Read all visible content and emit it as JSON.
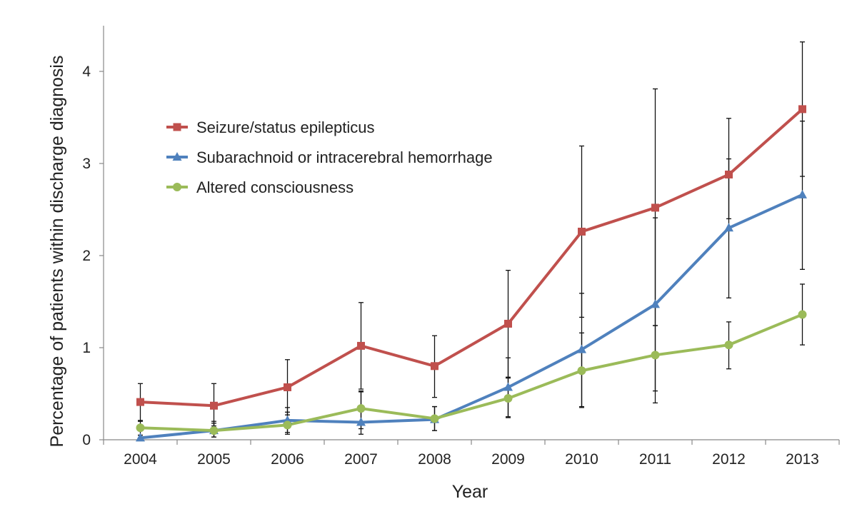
{
  "chart_data": {
    "type": "line",
    "title": "",
    "xlabel": "Year",
    "ylabel": "Percentage of patients within discharge diagnosis",
    "categories": [
      "2004",
      "2005",
      "2006",
      "2007",
      "2008",
      "2009",
      "2010",
      "2011",
      "2012",
      "2013"
    ],
    "ylim": [
      0,
      4.5
    ],
    "yticks": [
      "0",
      "1",
      "2",
      "3",
      "4"
    ],
    "grid": false,
    "legend_position": "top-left",
    "series": [
      {
        "name": "Seizure/status epilepticus",
        "color": "#c0504d",
        "marker": "square",
        "values": [
          0.41,
          0.37,
          0.57,
          1.02,
          0.8,
          1.26,
          2.26,
          2.52,
          2.88,
          3.59
        ],
        "error_low": [
          0.2,
          0.15,
          0.27,
          0.55,
          0.46,
          0.68,
          1.33,
          1.24,
          2.4,
          2.86
        ],
        "error_high": [
          0.61,
          0.61,
          0.87,
          1.49,
          1.13,
          1.84,
          3.19,
          3.81,
          3.49,
          4.32
        ]
      },
      {
        "name": "Subarachnoid or intracerebral hemorrhage",
        "color": "#4f81bd",
        "marker": "triangle",
        "values": [
          0.02,
          0.1,
          0.21,
          0.19,
          0.22,
          0.57,
          0.98,
          1.47,
          2.3,
          2.66
        ],
        "error_low": [
          0.0,
          0.03,
          0.08,
          0.06,
          0.1,
          0.25,
          0.35,
          0.53,
          1.54,
          1.85
        ],
        "error_high": [
          0.05,
          0.2,
          0.35,
          0.52,
          0.36,
          0.89,
          1.59,
          2.41,
          3.05,
          3.46
        ]
      },
      {
        "name": "Altered consciousness",
        "color": "#9bbb59",
        "marker": "circle",
        "values": [
          0.13,
          0.1,
          0.16,
          0.34,
          0.23,
          0.45,
          0.75,
          0.92,
          1.03,
          1.36
        ],
        "error_low": [
          0.05,
          0.03,
          0.06,
          0.12,
          0.1,
          0.24,
          0.36,
          0.4,
          0.77,
          1.03
        ],
        "error_high": [
          0.21,
          0.18,
          0.3,
          0.53,
          0.36,
          0.67,
          1.16,
          1.24,
          1.28,
          1.69
        ]
      }
    ]
  }
}
